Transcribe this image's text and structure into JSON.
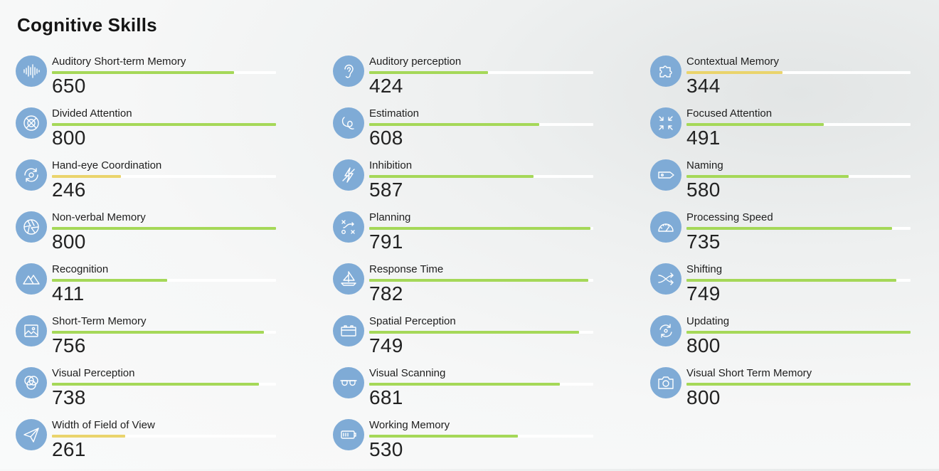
{
  "page": {
    "title": "Cognitive Skills"
  },
  "scale_max": 800,
  "colors": {
    "high": "#a5d858",
    "low": "#ead46c",
    "icon_bg": "#7fabd6"
  },
  "skills": [
    {
      "name": "Auditory Short-term Memory",
      "score": "650",
      "value": 650,
      "icon": "soundwave-icon",
      "level": "high"
    },
    {
      "name": "Auditory perception",
      "score": "424",
      "value": 424,
      "icon": "ear-icon",
      "level": "high"
    },
    {
      "name": "Contextual Memory",
      "score": "344",
      "value": 344,
      "icon": "puzzle-icon",
      "level": "low"
    },
    {
      "name": "Divided Attention",
      "score": "800",
      "value": 800,
      "icon": "crossed-circle-icon",
      "level": "high"
    },
    {
      "name": "Estimation",
      "score": "608",
      "value": 608,
      "icon": "loop-icon",
      "level": "high"
    },
    {
      "name": "Focused Attention",
      "score": "491",
      "value": 491,
      "icon": "focus-arrows-icon",
      "level": "high"
    },
    {
      "name": "Hand-eye Coordination",
      "score": "246",
      "value": 246,
      "icon": "rotate-target-icon",
      "level": "low"
    },
    {
      "name": "Inhibition",
      "score": "587",
      "value": 587,
      "icon": "slashed-bolt-icon",
      "level": "high"
    },
    {
      "name": "Naming",
      "score": "580",
      "value": 580,
      "icon": "tag-icon",
      "level": "high"
    },
    {
      "name": "Non-verbal Memory",
      "score": "800",
      "value": 800,
      "icon": "aperture-icon",
      "level": "high"
    },
    {
      "name": "Planning",
      "score": "791",
      "value": 791,
      "icon": "tactics-icon",
      "level": "high"
    },
    {
      "name": "Processing Speed",
      "score": "735",
      "value": 735,
      "icon": "speedometer-icon",
      "level": "high"
    },
    {
      "name": "Recognition",
      "score": "411",
      "value": 411,
      "icon": "mountains-icon",
      "level": "high"
    },
    {
      "name": "Response Time",
      "score": "782",
      "value": 782,
      "icon": "sailboat-icon",
      "level": "high"
    },
    {
      "name": "Shifting",
      "score": "749",
      "value": 749,
      "icon": "shuffle-icon",
      "level": "high"
    },
    {
      "name": "Short-Term Memory",
      "score": "756",
      "value": 756,
      "icon": "picture-icon",
      "level": "high"
    },
    {
      "name": "Spatial Perception",
      "score": "749",
      "value": 749,
      "icon": "battery-box-icon",
      "level": "high"
    },
    {
      "name": "Updating",
      "score": "800",
      "value": 800,
      "icon": "refresh-icon",
      "level": "high"
    },
    {
      "name": "Visual Perception",
      "score": "738",
      "value": 738,
      "icon": "circles-icon",
      "level": "high"
    },
    {
      "name": "Visual Scanning",
      "score": "681",
      "value": 681,
      "icon": "glasses-icon",
      "level": "high"
    },
    {
      "name": "Visual Short Term Memory",
      "score": "800",
      "value": 800,
      "icon": "camera-icon",
      "level": "high"
    },
    {
      "name": "Width of Field of View",
      "score": "261",
      "value": 261,
      "icon": "paper-plane-icon",
      "level": "low"
    },
    {
      "name": "Working Memory",
      "score": "530",
      "value": 530,
      "icon": "battery-icon",
      "level": "high"
    }
  ]
}
